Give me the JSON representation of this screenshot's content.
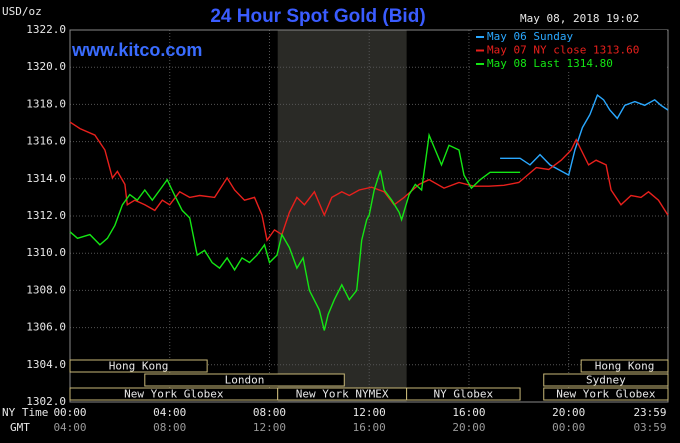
{
  "chart_data": {
    "type": "line",
    "title": "24 Hour Spot Gold (Bid)",
    "unit_label": "USD/oz",
    "timestamp": "May 08, 2018 19:02",
    "site": "www.kitco.com",
    "x_label": "NY Time",
    "x2_label": "GMT",
    "xlim": [
      0,
      23.983
    ],
    "ylim": [
      1302,
      1322
    ],
    "grid": true,
    "legend": "top-right",
    "xticks": [
      {
        "value": 0,
        "label": "00:00"
      },
      {
        "value": 4,
        "label": "04:00"
      },
      {
        "value": 8,
        "label": "08:00"
      },
      {
        "value": 12,
        "label": "12:00"
      },
      {
        "value": 16,
        "label": "16:00"
      },
      {
        "value": 20,
        "label": "20:00"
      },
      {
        "value": 23.983,
        "label": "23:59"
      }
    ],
    "x2ticks": [
      {
        "value": 0,
        "label": "04:00"
      },
      {
        "value": 4,
        "label": "08:00"
      },
      {
        "value": 8,
        "label": "12:00"
      },
      {
        "value": 12,
        "label": "16:00"
      },
      {
        "value": 16,
        "label": "20:00"
      },
      {
        "value": 20,
        "label": "00:00"
      },
      {
        "value": 23.983,
        "label": "03:59"
      }
    ],
    "yticks": [
      {
        "value": 1302,
        "label": "1302.0"
      },
      {
        "value": 1304,
        "label": "1304.0"
      },
      {
        "value": 1306,
        "label": "1306.0"
      },
      {
        "value": 1308,
        "label": "1308.0"
      },
      {
        "value": 1310,
        "label": "1310.0"
      },
      {
        "value": 1312,
        "label": "1312.0"
      },
      {
        "value": 1314,
        "label": "1314.0"
      },
      {
        "value": 1316,
        "label": "1316.0"
      },
      {
        "value": 1318,
        "label": "1318.0"
      },
      {
        "value": 1320,
        "label": "1320.0"
      },
      {
        "value": 1322,
        "label": "1322.0"
      }
    ],
    "sessions": [
      {
        "label": "Hong Kong",
        "start": 0,
        "end": 5.5
      },
      {
        "label": "London",
        "start": 3,
        "end": 11
      },
      {
        "label": "New York Globex",
        "start": 0,
        "end": 8.33
      },
      {
        "label": "New York NYMEX",
        "start": 8.33,
        "end": 13.5
      },
      {
        "label": "NY Globex",
        "start": 13.5,
        "end": 18.05
      },
      {
        "label": "Hong Kong",
        "start": 20.5,
        "end": 23.983
      },
      {
        "label": "Sydney",
        "start": 19,
        "end": 23.983
      },
      {
        "label": "New York Globex",
        "start": 19,
        "end": 23.983
      }
    ],
    "series": [
      {
        "name": "May 06 Sunday",
        "color": "#2aa8ff",
        "x": [
          17.25,
          18.05,
          18.45,
          18.85,
          19.25,
          19.65,
          20.0,
          20.25,
          20.55,
          20.85,
          21.15,
          21.4,
          21.65,
          21.95,
          22.25,
          22.65,
          23.05,
          23.45,
          23.7,
          23.98
        ],
        "values": [
          1315.1,
          1315.1,
          1314.75,
          1315.3,
          1314.75,
          1314.45,
          1314.2,
          1315.55,
          1316.75,
          1317.45,
          1318.5,
          1318.25,
          1317.7,
          1317.25,
          1317.95,
          1318.15,
          1317.95,
          1318.25,
          1317.95,
          1317.7
        ]
      },
      {
        "name": "May 07 NY close 1313.60",
        "color": "#e8201c",
        "x": [
          0,
          0.4,
          1.0,
          1.4,
          1.7,
          1.9,
          2.2,
          2.3,
          2.6,
          3.0,
          3.4,
          3.7,
          4.0,
          4.4,
          4.8,
          5.2,
          5.8,
          6.3,
          6.6,
          7.0,
          7.4,
          7.7,
          7.9,
          8.2,
          8.5,
          8.8,
          9.1,
          9.4,
          9.8,
          10.2,
          10.5,
          10.9,
          11.2,
          11.6,
          12.1,
          12.6,
          13.0,
          13.4,
          14.0,
          14.4,
          15.0,
          15.6,
          16.2,
          16.8,
          17.4,
          18.0,
          18.7,
          19.2,
          19.7,
          20.1,
          20.3,
          20.5,
          20.8,
          21.1,
          21.5,
          21.7,
          22.1,
          22.5,
          22.9,
          23.2,
          23.6,
          23.98
        ],
        "values": [
          1317.05,
          1316.7,
          1316.35,
          1315.55,
          1314.05,
          1314.4,
          1313.7,
          1312.6,
          1312.85,
          1312.6,
          1312.3,
          1312.85,
          1312.6,
          1313.3,
          1313.0,
          1313.1,
          1313.0,
          1314.05,
          1313.4,
          1312.85,
          1313.0,
          1312.05,
          1310.7,
          1311.25,
          1311.0,
          1312.2,
          1313.0,
          1312.6,
          1313.3,
          1312.05,
          1313.0,
          1313.3,
          1313.1,
          1313.4,
          1313.55,
          1313.3,
          1312.6,
          1313.0,
          1313.7,
          1313.95,
          1313.5,
          1313.8,
          1313.6,
          1313.6,
          1313.65,
          1313.8,
          1314.6,
          1314.5,
          1315.0,
          1315.55,
          1316.1,
          1315.55,
          1314.75,
          1315.0,
          1314.75,
          1313.4,
          1312.6,
          1313.1,
          1313.0,
          1313.3,
          1312.85,
          1312.05
        ]
      },
      {
        "name": "May 08 Last 1314.80",
        "color": "#14e614",
        "x": [
          0,
          0.3,
          0.8,
          1.2,
          1.5,
          1.8,
          2.1,
          2.4,
          2.7,
          3.0,
          3.3,
          3.6,
          3.9,
          4.2,
          4.5,
          4.8,
          5.1,
          5.4,
          5.7,
          6.0,
          6.3,
          6.6,
          6.9,
          7.2,
          7.5,
          7.8,
          8.0,
          8.3,
          8.5,
          8.8,
          9.1,
          9.35,
          9.6,
          10.0,
          10.2,
          10.35,
          10.6,
          10.9,
          11.2,
          11.5,
          11.7,
          11.9,
          12.0,
          12.2,
          12.45,
          12.6,
          12.9,
          13.2,
          13.3,
          13.6,
          13.85,
          14.1,
          14.4,
          14.65,
          14.9,
          15.2,
          15.6,
          15.8,
          16.1,
          16.45,
          16.85,
          17.25,
          18.05
        ],
        "values": [
          1311.15,
          1310.8,
          1311.0,
          1310.45,
          1310.8,
          1311.5,
          1312.6,
          1313.15,
          1312.85,
          1313.4,
          1312.85,
          1313.4,
          1313.95,
          1313.1,
          1312.3,
          1311.9,
          1309.9,
          1310.15,
          1309.5,
          1309.2,
          1309.75,
          1309.1,
          1309.75,
          1309.5,
          1309.9,
          1310.45,
          1309.5,
          1309.9,
          1311.0,
          1310.3,
          1309.2,
          1309.75,
          1308.0,
          1306.95,
          1305.85,
          1306.7,
          1307.5,
          1308.3,
          1307.5,
          1308.0,
          1310.7,
          1311.8,
          1312.05,
          1313.4,
          1314.45,
          1313.4,
          1312.85,
          1312.2,
          1311.8,
          1313.15,
          1313.7,
          1313.4,
          1316.35,
          1315.55,
          1314.75,
          1315.8,
          1315.55,
          1314.2,
          1313.5,
          1313.95,
          1314.35,
          1314.35,
          1314.35
        ]
      }
    ]
  }
}
